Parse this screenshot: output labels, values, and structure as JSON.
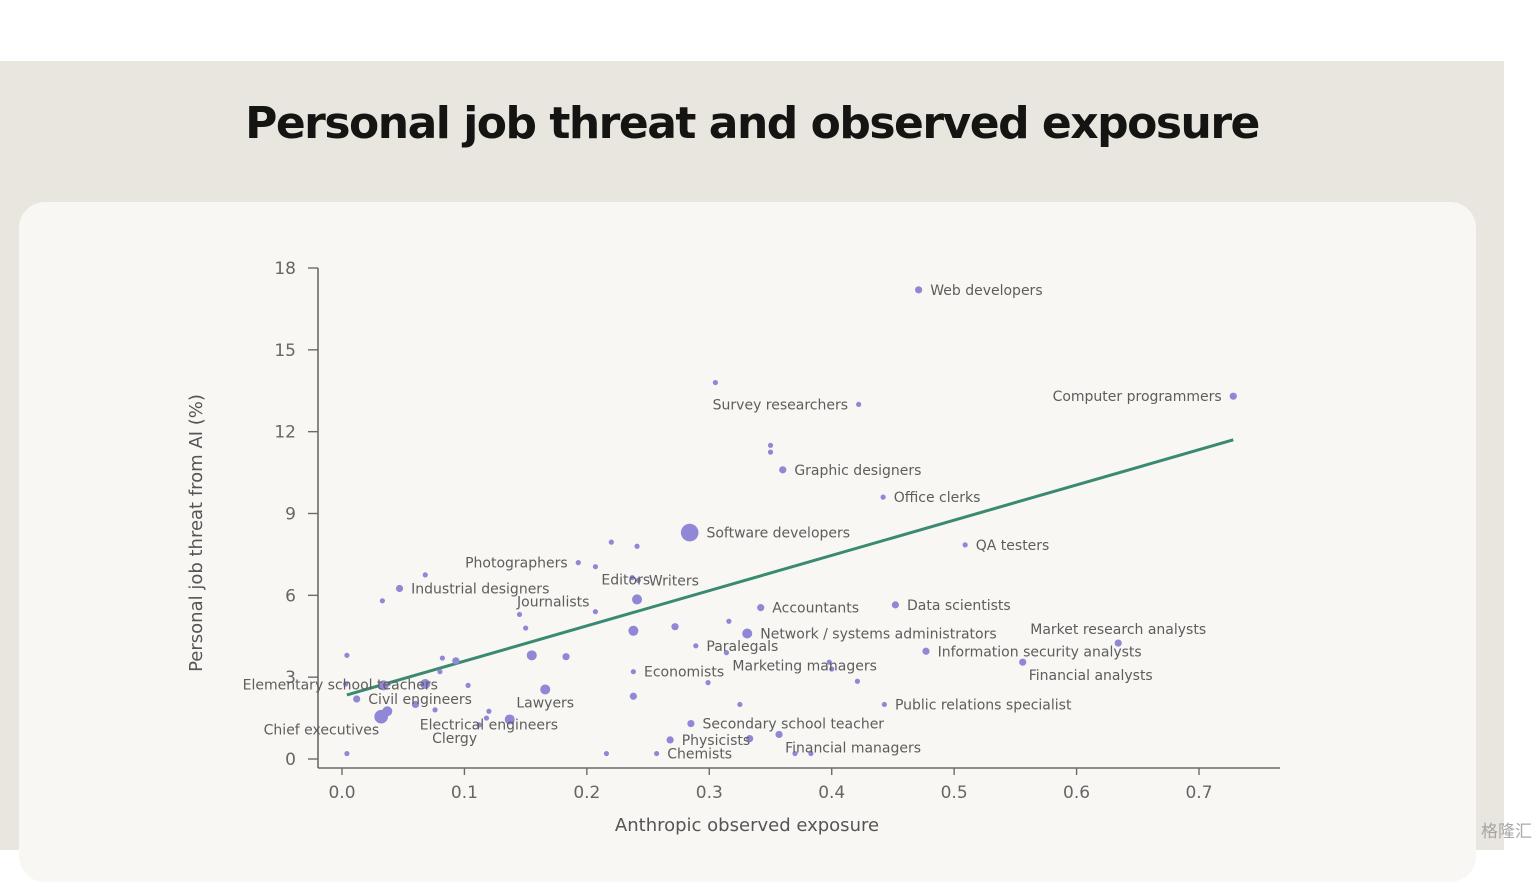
{
  "page": {
    "title": "Personal job threat and observed exposure",
    "watermark": "格隆汇"
  },
  "chart_data": {
    "type": "scatter",
    "title": "Personal job threat and observed exposure",
    "xlabel": "Anthropic observed exposure",
    "ylabel": "Personal job threat from AI (%)",
    "xlim": [
      -0.02,
      0.765
    ],
    "ylim": [
      -0.4,
      18.2
    ],
    "xticks": [
      "0.0",
      "0.1",
      "0.2",
      "0.3",
      "0.4",
      "0.5",
      "0.6",
      "0.7"
    ],
    "yticks": [
      "0",
      "3",
      "6",
      "9",
      "12",
      "15",
      "18"
    ],
    "grid": false,
    "colors": {
      "point": "#9088d6",
      "trend": "#3a8a72",
      "axis": "#6b6b6b",
      "label": "#5d5d5d"
    },
    "trendline": {
      "x": [
        0.004,
        0.728
      ],
      "y": [
        2.35,
        11.7
      ]
    },
    "points": [
      {
        "x": 0.471,
        "y": 17.2,
        "size": "s",
        "label": "Web developers",
        "anchor": "right"
      },
      {
        "x": 0.728,
        "y": 13.3,
        "size": "s",
        "label": "Computer programmers",
        "anchor": "left"
      },
      {
        "x": 0.305,
        "y": 13.8,
        "size": "xs",
        "label": "",
        "anchor": "right"
      },
      {
        "x": 0.422,
        "y": 13.0,
        "size": "xs",
        "label": "Survey researchers",
        "anchor": "left"
      },
      {
        "x": 0.35,
        "y": 11.5,
        "size": "xs",
        "label": "",
        "anchor": "right"
      },
      {
        "x": 0.35,
        "y": 11.25,
        "size": "xs",
        "label": "",
        "anchor": "right"
      },
      {
        "x": 0.36,
        "y": 10.6,
        "size": "s",
        "label": "Graphic designers",
        "anchor": "right"
      },
      {
        "x": 0.442,
        "y": 9.6,
        "size": "xs",
        "label": "Office clerks",
        "anchor": "right"
      },
      {
        "x": 0.284,
        "y": 8.3,
        "size": "xl",
        "label": "Software developers",
        "anchor": "right"
      },
      {
        "x": 0.509,
        "y": 7.85,
        "size": "xs",
        "label": "QA testers",
        "anchor": "right"
      },
      {
        "x": 0.22,
        "y": 7.95,
        "size": "xs",
        "label": "",
        "anchor": "right"
      },
      {
        "x": 0.241,
        "y": 7.8,
        "size": "xs",
        "label": "",
        "anchor": "right"
      },
      {
        "x": 0.193,
        "y": 7.2,
        "size": "xs",
        "label": "Photographers",
        "anchor": "left"
      },
      {
        "x": 0.207,
        "y": 7.05,
        "size": "xs",
        "label": "Editors",
        "anchor": "belowright"
      },
      {
        "x": 0.237,
        "y": 6.65,
        "size": "xs",
        "label": "",
        "anchor": "right"
      },
      {
        "x": 0.242,
        "y": 6.55,
        "size": "xs",
        "label": "Writers",
        "anchor": "right"
      },
      {
        "x": 0.068,
        "y": 6.75,
        "size": "xs",
        "label": "",
        "anchor": "right"
      },
      {
        "x": 0.047,
        "y": 6.25,
        "size": "s",
        "label": "Industrial designers",
        "anchor": "right"
      },
      {
        "x": 0.033,
        "y": 5.8,
        "size": "xs",
        "label": "",
        "anchor": "right"
      },
      {
        "x": 0.241,
        "y": 5.85,
        "size": "m",
        "label": "",
        "anchor": "right"
      },
      {
        "x": 0.207,
        "y": 5.4,
        "size": "xs",
        "label": "Journalists",
        "anchor": "aboveleft"
      },
      {
        "x": 0.145,
        "y": 5.3,
        "size": "xs",
        "label": "",
        "anchor": "right"
      },
      {
        "x": 0.342,
        "y": 5.55,
        "size": "s",
        "label": "Accountants",
        "anchor": "right"
      },
      {
        "x": 0.452,
        "y": 5.65,
        "size": "s",
        "label": "Data scientists",
        "anchor": "right"
      },
      {
        "x": 0.316,
        "y": 5.05,
        "size": "xs",
        "label": "",
        "anchor": "right"
      },
      {
        "x": 0.15,
        "y": 4.8,
        "size": "xs",
        "label": "",
        "anchor": "right"
      },
      {
        "x": 0.272,
        "y": 4.85,
        "size": "s",
        "label": "",
        "anchor": "right"
      },
      {
        "x": 0.238,
        "y": 4.7,
        "size": "m",
        "label": "",
        "anchor": "right"
      },
      {
        "x": 0.331,
        "y": 4.6,
        "size": "m",
        "label": "Network / systems administrators",
        "anchor": "right"
      },
      {
        "x": 0.634,
        "y": 4.25,
        "size": "s",
        "label": "Market research analysts",
        "anchor": "above"
      },
      {
        "x": 0.289,
        "y": 4.15,
        "size": "xs",
        "label": "Paralegals",
        "anchor": "right"
      },
      {
        "x": 0.477,
        "y": 3.95,
        "size": "s",
        "label": "Information security analysts",
        "anchor": "right"
      },
      {
        "x": 0.314,
        "y": 3.9,
        "size": "xs",
        "label": "Marketing managers",
        "anchor": "belowright"
      },
      {
        "x": 0.556,
        "y": 3.55,
        "size": "s",
        "label": "Financial analysts",
        "anchor": "belowright"
      },
      {
        "x": 0.004,
        "y": 3.8,
        "size": "xs",
        "label": "",
        "anchor": "right"
      },
      {
        "x": 0.082,
        "y": 3.7,
        "size": "xs",
        "label": "",
        "anchor": "right"
      },
      {
        "x": 0.093,
        "y": 3.6,
        "size": "s",
        "label": "",
        "anchor": "right"
      },
      {
        "x": 0.155,
        "y": 3.8,
        "size": "m",
        "label": "",
        "anchor": "right"
      },
      {
        "x": 0.183,
        "y": 3.75,
        "size": "s",
        "label": "",
        "anchor": "right"
      },
      {
        "x": 0.398,
        "y": 3.55,
        "size": "xs",
        "label": "",
        "anchor": "right"
      },
      {
        "x": 0.4,
        "y": 3.3,
        "size": "xs",
        "label": "",
        "anchor": "right"
      },
      {
        "x": 0.238,
        "y": 3.2,
        "size": "xs",
        "label": "Economists",
        "anchor": "right"
      },
      {
        "x": 0.08,
        "y": 3.2,
        "size": "xs",
        "label": "Elementary school teachers",
        "anchor": "belowleft"
      },
      {
        "x": 0.003,
        "y": 2.75,
        "size": "xs",
        "label": "",
        "anchor": "right"
      },
      {
        "x": 0.034,
        "y": 2.7,
        "size": "m",
        "label": "",
        "anchor": "right"
      },
      {
        "x": 0.068,
        "y": 2.75,
        "size": "m",
        "label": "",
        "anchor": "right"
      },
      {
        "x": 0.103,
        "y": 2.7,
        "size": "xs",
        "label": "",
        "anchor": "right"
      },
      {
        "x": 0.166,
        "y": 2.55,
        "size": "m",
        "label": "Lawyers",
        "anchor": "belowcenter"
      },
      {
        "x": 0.299,
        "y": 2.8,
        "size": "xs",
        "label": "",
        "anchor": "right"
      },
      {
        "x": 0.421,
        "y": 2.85,
        "size": "xs",
        "label": "",
        "anchor": "right"
      },
      {
        "x": 0.012,
        "y": 2.2,
        "size": "s",
        "label": "Civil engineers",
        "anchor": "right"
      },
      {
        "x": 0.238,
        "y": 2.3,
        "size": "s",
        "label": "",
        "anchor": "right"
      },
      {
        "x": 0.443,
        "y": 2.0,
        "size": "xs",
        "label": "Public relations specialist",
        "anchor": "right"
      },
      {
        "x": 0.325,
        "y": 2.0,
        "size": "xs",
        "label": "",
        "anchor": "right"
      },
      {
        "x": 0.037,
        "y": 1.75,
        "size": "m",
        "label": "",
        "anchor": "right"
      },
      {
        "x": 0.032,
        "y": 1.55,
        "size": "l",
        "label": "Chief executives",
        "anchor": "belowleft"
      },
      {
        "x": 0.06,
        "y": 2.0,
        "size": "s",
        "label": "",
        "anchor": "right"
      },
      {
        "x": 0.076,
        "y": 1.8,
        "size": "xs",
        "label": "",
        "anchor": "right"
      },
      {
        "x": 0.12,
        "y": 1.75,
        "size": "xs",
        "label": "Electrical engineers",
        "anchor": "belowcenter"
      },
      {
        "x": 0.118,
        "y": 1.5,
        "size": "xs",
        "label": "",
        "anchor": "right"
      },
      {
        "x": 0.137,
        "y": 1.45,
        "size": "m",
        "label": "",
        "anchor": "right"
      },
      {
        "x": 0.112,
        "y": 1.25,
        "size": "xs",
        "label": "Clergy",
        "anchor": "belowleft"
      },
      {
        "x": 0.285,
        "y": 1.3,
        "size": "s",
        "label": "Secondary school teacher",
        "anchor": "right"
      },
      {
        "x": 0.357,
        "y": 0.9,
        "size": "s",
        "label": "Financial managers",
        "anchor": "belowright"
      },
      {
        "x": 0.333,
        "y": 0.75,
        "size": "s",
        "label": "",
        "anchor": "right"
      },
      {
        "x": 0.268,
        "y": 0.7,
        "size": "s",
        "label": "Physicists",
        "anchor": "right"
      },
      {
        "x": 0.004,
        "y": 0.2,
        "size": "xs",
        "label": "",
        "anchor": "right"
      },
      {
        "x": 0.216,
        "y": 0.2,
        "size": "xs",
        "label": "",
        "anchor": "right"
      },
      {
        "x": 0.257,
        "y": 0.2,
        "size": "xs",
        "label": "Chemists",
        "anchor": "right"
      },
      {
        "x": 0.37,
        "y": 0.2,
        "size": "xs",
        "label": "",
        "anchor": "right"
      },
      {
        "x": 0.383,
        "y": 0.2,
        "size": "xs",
        "label": "",
        "anchor": "right"
      }
    ]
  }
}
